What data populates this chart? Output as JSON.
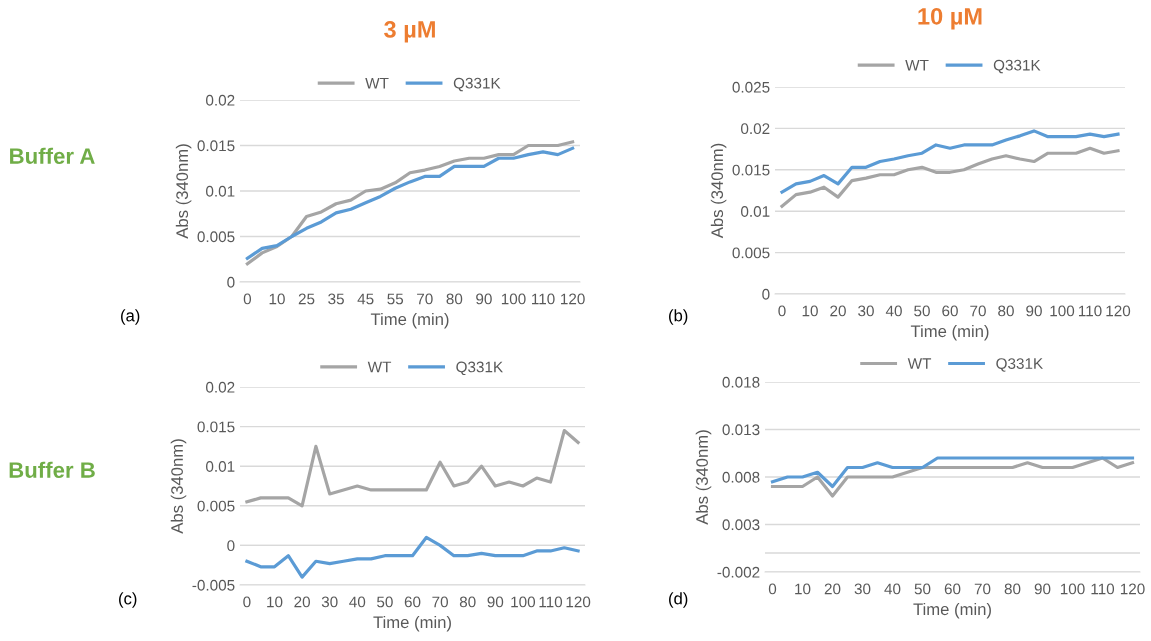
{
  "chart_data": [
    {
      "type": "line",
      "title": "3 µM",
      "xlabel": "Time (min)",
      "ylabel": "Abs (340nm)",
      "annotations": [
        "Buffer A",
        "(a)"
      ],
      "categories": [
        "0",
        null,
        "10",
        null,
        "25",
        null,
        "35",
        null,
        "45",
        null,
        "55",
        null,
        "70",
        null,
        "80",
        null,
        "90",
        null,
        "100",
        null,
        "110",
        null,
        "120"
      ],
      "series": [
        {
          "name": "WT",
          "color": "#a5a5a5",
          "values": [
            0.002,
            0.0032,
            0.0039,
            0.005,
            0.0072,
            0.0077,
            0.0086,
            0.009,
            0.01,
            0.0102,
            0.0109,
            0.012,
            0.0123,
            0.0127,
            0.0133,
            0.0136,
            0.0136,
            0.014,
            0.014,
            0.015,
            0.015,
            0.015,
            0.0154
          ]
        },
        {
          "name": "Q331K",
          "color": "#5b9bd5",
          "values": [
            0.0026,
            0.0037,
            0.004,
            0.005,
            0.0059,
            0.0066,
            0.0076,
            0.008,
            0.0087,
            0.0094,
            0.0103,
            0.011,
            0.0116,
            0.0116,
            0.0127,
            0.0127,
            0.0127,
            0.0136,
            0.0136,
            0.014,
            0.0143,
            0.014,
            0.0147
          ]
        }
      ],
      "ylim": [
        0,
        0.02
      ],
      "yticks": [
        0,
        0.005,
        0.01,
        0.015,
        0.02
      ],
      "grid": "y",
      "legend": "top"
    },
    {
      "type": "line",
      "title": "10 µM",
      "xlabel": "Time (min)",
      "ylabel": "Abs (340nm)",
      "annotations": [
        "(b)"
      ],
      "categories": [
        "0",
        null,
        "10",
        null,
        "20",
        null,
        "30",
        null,
        "40",
        null,
        "50",
        null,
        "60",
        null,
        "70",
        null,
        "80",
        null,
        "90",
        null,
        "100",
        null,
        "110",
        null,
        "120"
      ],
      "series": [
        {
          "name": "WT",
          "color": "#a5a5a5",
          "values": [
            0.0106,
            0.012,
            0.0123,
            0.0129,
            0.0117,
            0.0137,
            0.014,
            0.0144,
            0.0144,
            0.015,
            0.0153,
            0.0147,
            0.0147,
            0.015,
            0.0157,
            0.0163,
            0.0167,
            0.0163,
            0.016,
            0.017,
            0.017,
            0.017,
            0.0176,
            0.017,
            0.0173
          ]
        },
        {
          "name": "Q331K",
          "color": "#5b9bd5",
          "values": [
            0.0123,
            0.0133,
            0.0136,
            0.0143,
            0.0133,
            0.0153,
            0.0153,
            0.016,
            0.0163,
            0.0167,
            0.017,
            0.018,
            0.0176,
            0.018,
            0.018,
            0.018,
            0.0186,
            0.0191,
            0.0197,
            0.019,
            0.019,
            0.019,
            0.0193,
            0.019,
            0.0193
          ]
        }
      ],
      "ylim": [
        0,
        0.025
      ],
      "yticks": [
        0,
        0.005,
        0.01,
        0.015,
        0.02,
        0.025
      ],
      "grid": "y",
      "legend": "top"
    },
    {
      "type": "line",
      "xlabel": "Time (min)",
      "ylabel": "Abs (340nm)",
      "annotations": [
        "Buffer B",
        "(c)"
      ],
      "categories": [
        "0",
        null,
        "10",
        null,
        "20",
        null,
        "30",
        null,
        "40",
        null,
        "50",
        null,
        "60",
        null,
        "70",
        null,
        "80",
        null,
        "90",
        null,
        "100",
        null,
        "110",
        null,
        "120"
      ],
      "series": [
        {
          "name": "WT",
          "color": "#a5a5a5",
          "values": [
            0.0055,
            0.006,
            0.006,
            0.006,
            0.005,
            0.0125,
            0.0065,
            0.007,
            0.0075,
            0.007,
            0.007,
            0.007,
            0.007,
            0.007,
            0.0105,
            0.0075,
            0.008,
            0.01,
            0.0075,
            0.008,
            0.0075,
            0.0085,
            0.008,
            0.0145,
            0.013
          ]
        },
        {
          "name": "Q331K",
          "color": "#5b9bd5",
          "values": [
            -0.002,
            -0.0027,
            -0.0027,
            -0.0013,
            -0.004,
            -0.002,
            -0.0023,
            -0.002,
            -0.0017,
            -0.0017,
            -0.0013,
            -0.0013,
            -0.0013,
            0.001,
            0,
            -0.0013,
            -0.0013,
            -0.001,
            -0.0013,
            -0.0013,
            -0.0013,
            -0.0007,
            -0.0007,
            -0.0003,
            -0.0007
          ]
        }
      ],
      "ylim": [
        -0.005,
        0.02
      ],
      "yticks": [
        -0.005,
        0,
        0.005,
        0.01,
        0.015,
        0.02
      ],
      "grid": "y",
      "legend": "top"
    },
    {
      "type": "line",
      "xlabel": "Time (min)",
      "ylabel": "Abs (340nm)",
      "annotations": [
        "(d)"
      ],
      "categories": [
        "0",
        null,
        "10",
        null,
        "20",
        null,
        "30",
        null,
        "40",
        null,
        "50",
        null,
        "60",
        null,
        "70",
        null,
        "80",
        null,
        "90",
        null,
        "100",
        null,
        "110",
        null,
        "120"
      ],
      "series": [
        {
          "name": "WT",
          "color": "#a5a5a5",
          "values": [
            0.007,
            0.007,
            0.007,
            0.008,
            0.006,
            0.008,
            0.008,
            0.008,
            0.008,
            0.0085,
            0.009,
            0.009,
            0.009,
            0.009,
            0.009,
            0.009,
            0.009,
            0.0095,
            0.009,
            0.009,
            0.009,
            0.0095,
            0.01,
            0.009,
            0.0095
          ]
        },
        {
          "name": "Q331K",
          "color": "#5b9bd5",
          "values": [
            0.0075,
            0.008,
            0.008,
            0.0085,
            0.007,
            0.009,
            0.009,
            0.0095,
            0.009,
            0.009,
            0.009,
            0.01,
            0.01,
            0.01,
            0.01,
            0.01,
            0.01,
            0.01,
            0.01,
            0.01,
            0.01,
            0.01,
            0.01,
            0.01,
            0.01
          ]
        }
      ],
      "ylim": [
        -0.002,
        0.018
      ],
      "yticks": [
        -0.002,
        0.003,
        0.008,
        0.013,
        0.018
      ],
      "grid": "y",
      "legend": "top"
    }
  ]
}
